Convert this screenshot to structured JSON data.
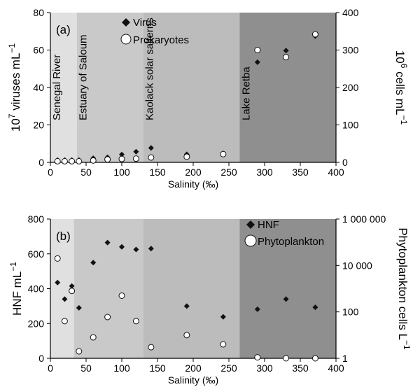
{
  "chart_data": [
    {
      "type": "scatter",
      "panel_label": "(a)",
      "xlabel": "Salinity (‰)",
      "ylabel": "10",
      "ylabel_sup": "7",
      "ylabel_rest": " viruses mL",
      "ylabel_rest_sup": "−1",
      "y2label": "10",
      "y2label_sup": "6",
      "y2label_rest": " cells mL",
      "y2label_rest_sup": "−1",
      "xlim": [
        0,
        400
      ],
      "ylim": [
        0,
        80
      ],
      "y2lim": [
        0,
        400
      ],
      "xticks": [
        "0",
        "50",
        "100",
        "150",
        "200",
        "250",
        "300",
        "350",
        "400"
      ],
      "yticks": [
        "0",
        "20",
        "40",
        "60",
        "80"
      ],
      "y2ticks": [
        "0",
        "100",
        "200",
        "300",
        "400"
      ],
      "zones": [
        {
          "label": "Senegal River",
          "x0": 0,
          "x1": 37,
          "color": "#e0e0e0"
        },
        {
          "label": "Estuary of Saloum",
          "x0": 37,
          "x1": 130,
          "color": "#c9c9c9"
        },
        {
          "label": "Kaolack solar salterns",
          "x0": 130,
          "x1": 265,
          "color": "#bcbcbc"
        },
        {
          "label": "Lake Retba",
          "x0": 265,
          "x1": 400,
          "color": "#8f8f8f"
        }
      ],
      "legend": [
        "Virus",
        "Prokaryotes"
      ],
      "series": [
        {
          "name": "Virus",
          "axis": "left",
          "marker": "diamond",
          "x": [
            10,
            20,
            30,
            40,
            60,
            80,
            100,
            120,
            141,
            191,
            242,
            290,
            330,
            371
          ],
          "y": [
            1.2,
            1.2,
            1.2,
            1.2,
            2.2,
            2.7,
            4.2,
            5.7,
            7.7,
            4.3,
            4.8,
            53.5,
            59.7,
            67.5
          ]
        },
        {
          "name": "Prokaryotes",
          "axis": "right",
          "marker": "circle",
          "x": [
            10,
            20,
            30,
            40,
            60,
            80,
            100,
            120,
            141,
            191,
            242,
            290,
            330,
            371
          ],
          "y": [
            3,
            3,
            3,
            3,
            5,
            8,
            9,
            10,
            13,
            15,
            22,
            300,
            281,
            342
          ]
        }
      ]
    },
    {
      "type": "scatter",
      "panel_label": "(b)",
      "xlabel": "Salinity (‰)",
      "ylabel": "HNF mL",
      "ylabel_sup": "−1",
      "y2label": "Phytoplankton cells L",
      "y2label_sup": "−1",
      "xlim": [
        0,
        400
      ],
      "ylim": [
        0,
        800
      ],
      "y2scale": "log",
      "y2lim": [
        1,
        1000000
      ],
      "xticks": [
        "0",
        "50",
        "100",
        "150",
        "200",
        "250",
        "300",
        "350",
        "400"
      ],
      "yticks": [
        "0",
        "200",
        "400",
        "600",
        "800"
      ],
      "y2ticks": [
        "1",
        "100",
        "10 000",
        "1 000 000"
      ],
      "zones": [
        {
          "x0": 0,
          "x1": 33,
          "color": "#e0e0e0"
        },
        {
          "x0": 33,
          "x1": 130,
          "color": "#c9c9c9"
        },
        {
          "x0": 130,
          "x1": 265,
          "color": "#bcbcbc"
        },
        {
          "x0": 265,
          "x1": 400,
          "color": "#8f8f8f"
        }
      ],
      "legend": [
        "HNF",
        "Phytoplankton"
      ],
      "series": [
        {
          "name": "HNF",
          "axis": "left",
          "marker": "diamond",
          "x": [
            10,
            20,
            30,
            40,
            60,
            80,
            100,
            120,
            141,
            191,
            242,
            290,
            330,
            371
          ],
          "y": [
            435,
            340,
            415,
            290,
            550,
            665,
            640,
            625,
            630,
            300,
            238,
            282,
            340,
            293
          ]
        },
        {
          "name": "Phytoplankton",
          "axis": "right",
          "marker": "circle",
          "x": [
            10,
            20,
            30,
            40,
            60,
            80,
            100,
            120,
            141,
            191,
            242,
            290,
            330,
            371
          ],
          "y": [
            20000,
            40,
            800,
            2,
            8,
            60,
            500,
            40,
            3,
            10,
            4,
            1.1,
            1,
            1
          ]
        }
      ]
    }
  ]
}
